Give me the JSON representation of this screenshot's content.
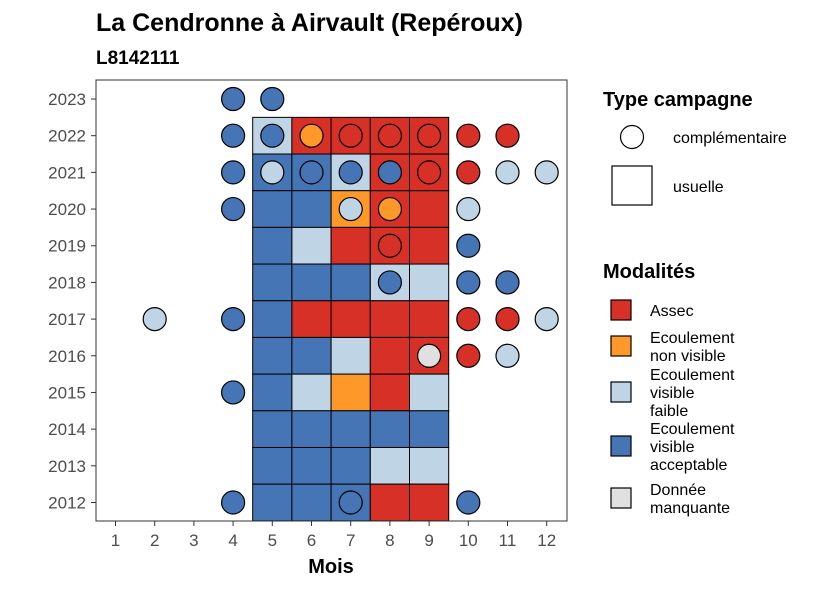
{
  "chart_data": {
    "type": "heatmap",
    "title": "La Cendronne à  Airvault (Repéroux)",
    "subtitle": "L8142111",
    "xlabel": "Mois",
    "ylabel": "",
    "x_ticks": [
      "1",
      "2",
      "3",
      "4",
      "5",
      "6",
      "7",
      "8",
      "9",
      "10",
      "11",
      "12"
    ],
    "y_ticks": [
      "2012",
      "2013",
      "2014",
      "2015",
      "2016",
      "2017",
      "2018",
      "2019",
      "2020",
      "2021",
      "2022",
      "2023"
    ],
    "colors": {
      "assec": "#d73027",
      "nonvisible": "#fe9929",
      "faible": "#bfd5e6",
      "acceptable": "#4575b4",
      "manquante": "#e0e0e0"
    },
    "legend_shape": {
      "title": "Type campagne",
      "items": [
        {
          "key": "complementaire",
          "label": "complémentaire"
        },
        {
          "key": "usuelle",
          "label": "usuelle"
        }
      ]
    },
    "legend_fill": {
      "title": "Modalités",
      "items": [
        {
          "key": "assec",
          "lines": [
            "Assec"
          ]
        },
        {
          "key": "nonvisible",
          "lines": [
            "Ecoulement",
            "non visible"
          ]
        },
        {
          "key": "faible",
          "lines": [
            "Ecoulement",
            "visible",
            "faible"
          ]
        },
        {
          "key": "acceptable",
          "lines": [
            "Ecoulement",
            "visible",
            "acceptable"
          ]
        },
        {
          "key": "manquante",
          "lines": [
            "Donnée",
            "manquante"
          ]
        }
      ]
    },
    "usuelle": [
      {
        "year": 2022,
        "month": 5,
        "value": "faible"
      },
      {
        "year": 2022,
        "month": 6,
        "value": "assec"
      },
      {
        "year": 2022,
        "month": 7,
        "value": "assec"
      },
      {
        "year": 2022,
        "month": 8,
        "value": "assec"
      },
      {
        "year": 2022,
        "month": 9,
        "value": "assec"
      },
      {
        "year": 2021,
        "month": 5,
        "value": "acceptable"
      },
      {
        "year": 2021,
        "month": 6,
        "value": "acceptable"
      },
      {
        "year": 2021,
        "month": 7,
        "value": "faible"
      },
      {
        "year": 2021,
        "month": 8,
        "value": "assec"
      },
      {
        "year": 2021,
        "month": 9,
        "value": "assec"
      },
      {
        "year": 2020,
        "month": 5,
        "value": "acceptable"
      },
      {
        "year": 2020,
        "month": 6,
        "value": "acceptable"
      },
      {
        "year": 2020,
        "month": 7,
        "value": "nonvisible"
      },
      {
        "year": 2020,
        "month": 8,
        "value": "assec"
      },
      {
        "year": 2020,
        "month": 9,
        "value": "assec"
      },
      {
        "year": 2019,
        "month": 5,
        "value": "acceptable"
      },
      {
        "year": 2019,
        "month": 6,
        "value": "faible"
      },
      {
        "year": 2019,
        "month": 7,
        "value": "assec"
      },
      {
        "year": 2019,
        "month": 8,
        "value": "assec"
      },
      {
        "year": 2019,
        "month": 9,
        "value": "assec"
      },
      {
        "year": 2018,
        "month": 5,
        "value": "acceptable"
      },
      {
        "year": 2018,
        "month": 6,
        "value": "acceptable"
      },
      {
        "year": 2018,
        "month": 7,
        "value": "acceptable"
      },
      {
        "year": 2018,
        "month": 8,
        "value": "faible"
      },
      {
        "year": 2018,
        "month": 9,
        "value": "faible"
      },
      {
        "year": 2017,
        "month": 5,
        "value": "acceptable"
      },
      {
        "year": 2017,
        "month": 6,
        "value": "assec"
      },
      {
        "year": 2017,
        "month": 7,
        "value": "assec"
      },
      {
        "year": 2017,
        "month": 8,
        "value": "assec"
      },
      {
        "year": 2017,
        "month": 9,
        "value": "assec"
      },
      {
        "year": 2016,
        "month": 5,
        "value": "acceptable"
      },
      {
        "year": 2016,
        "month": 6,
        "value": "acceptable"
      },
      {
        "year": 2016,
        "month": 7,
        "value": "faible"
      },
      {
        "year": 2016,
        "month": 8,
        "value": "assec"
      },
      {
        "year": 2016,
        "month": 9,
        "value": "assec"
      },
      {
        "year": 2015,
        "month": 5,
        "value": "acceptable"
      },
      {
        "year": 2015,
        "month": 6,
        "value": "faible"
      },
      {
        "year": 2015,
        "month": 7,
        "value": "nonvisible"
      },
      {
        "year": 2015,
        "month": 8,
        "value": "assec"
      },
      {
        "year": 2015,
        "month": 9,
        "value": "faible"
      },
      {
        "year": 2014,
        "month": 5,
        "value": "acceptable"
      },
      {
        "year": 2014,
        "month": 6,
        "value": "acceptable"
      },
      {
        "year": 2014,
        "month": 7,
        "value": "acceptable"
      },
      {
        "year": 2014,
        "month": 8,
        "value": "acceptable"
      },
      {
        "year": 2014,
        "month": 9,
        "value": "acceptable"
      },
      {
        "year": 2013,
        "month": 5,
        "value": "acceptable"
      },
      {
        "year": 2013,
        "month": 6,
        "value": "acceptable"
      },
      {
        "year": 2013,
        "month": 7,
        "value": "acceptable"
      },
      {
        "year": 2013,
        "month": 8,
        "value": "faible"
      },
      {
        "year": 2013,
        "month": 9,
        "value": "faible"
      },
      {
        "year": 2012,
        "month": 5,
        "value": "acceptable"
      },
      {
        "year": 2012,
        "month": 6,
        "value": "acceptable"
      },
      {
        "year": 2012,
        "month": 7,
        "value": "acceptable"
      },
      {
        "year": 2012,
        "month": 8,
        "value": "assec"
      },
      {
        "year": 2012,
        "month": 9,
        "value": "assec"
      }
    ],
    "complementaire": [
      {
        "year": 2023,
        "month": 4,
        "value": "acceptable"
      },
      {
        "year": 2023,
        "month": 5,
        "value": "acceptable"
      },
      {
        "year": 2022,
        "month": 4,
        "value": "acceptable"
      },
      {
        "year": 2022,
        "month": 5,
        "value": "acceptable"
      },
      {
        "year": 2022,
        "month": 6,
        "value": "nonvisible"
      },
      {
        "year": 2022,
        "month": 7,
        "value": "assec"
      },
      {
        "year": 2022,
        "month": 8,
        "value": "assec"
      },
      {
        "year": 2022,
        "month": 9,
        "value": "assec"
      },
      {
        "year": 2022,
        "month": 10,
        "value": "assec"
      },
      {
        "year": 2022,
        "month": 11,
        "value": "assec"
      },
      {
        "year": 2021,
        "month": 4,
        "value": "acceptable"
      },
      {
        "year": 2021,
        "month": 5,
        "value": "faible"
      },
      {
        "year": 2021,
        "month": 6,
        "value": "acceptable"
      },
      {
        "year": 2021,
        "month": 7,
        "value": "acceptable"
      },
      {
        "year": 2021,
        "month": 8,
        "value": "acceptable"
      },
      {
        "year": 2021,
        "month": 9,
        "value": "assec"
      },
      {
        "year": 2021,
        "month": 10,
        "value": "assec"
      },
      {
        "year": 2021,
        "month": 11,
        "value": "faible"
      },
      {
        "year": 2021,
        "month": 12,
        "value": "faible"
      },
      {
        "year": 2020,
        "month": 4,
        "value": "acceptable"
      },
      {
        "year": 2020,
        "month": 7,
        "value": "faible"
      },
      {
        "year": 2020,
        "month": 8,
        "value": "nonvisible"
      },
      {
        "year": 2020,
        "month": 10,
        "value": "faible"
      },
      {
        "year": 2019,
        "month": 8,
        "value": "assec"
      },
      {
        "year": 2019,
        "month": 10,
        "value": "acceptable"
      },
      {
        "year": 2018,
        "month": 8,
        "value": "acceptable"
      },
      {
        "year": 2018,
        "month": 10,
        "value": "acceptable"
      },
      {
        "year": 2018,
        "month": 11,
        "value": "acceptable"
      },
      {
        "year": 2017,
        "month": 2,
        "value": "faible"
      },
      {
        "year": 2017,
        "month": 4,
        "value": "acceptable"
      },
      {
        "year": 2017,
        "month": 10,
        "value": "assec"
      },
      {
        "year": 2017,
        "month": 11,
        "value": "assec"
      },
      {
        "year": 2017,
        "month": 12,
        "value": "faible"
      },
      {
        "year": 2016,
        "month": 9,
        "value": "manquante"
      },
      {
        "year": 2016,
        "month": 10,
        "value": "assec"
      },
      {
        "year": 2016,
        "month": 11,
        "value": "faible"
      },
      {
        "year": 2015,
        "month": 4,
        "value": "acceptable"
      },
      {
        "year": 2012,
        "month": 4,
        "value": "acceptable"
      },
      {
        "year": 2012,
        "month": 7,
        "value": "acceptable"
      },
      {
        "year": 2012,
        "month": 10,
        "value": "acceptable"
      }
    ],
    "legend_placement": "right",
    "grid": false
  }
}
